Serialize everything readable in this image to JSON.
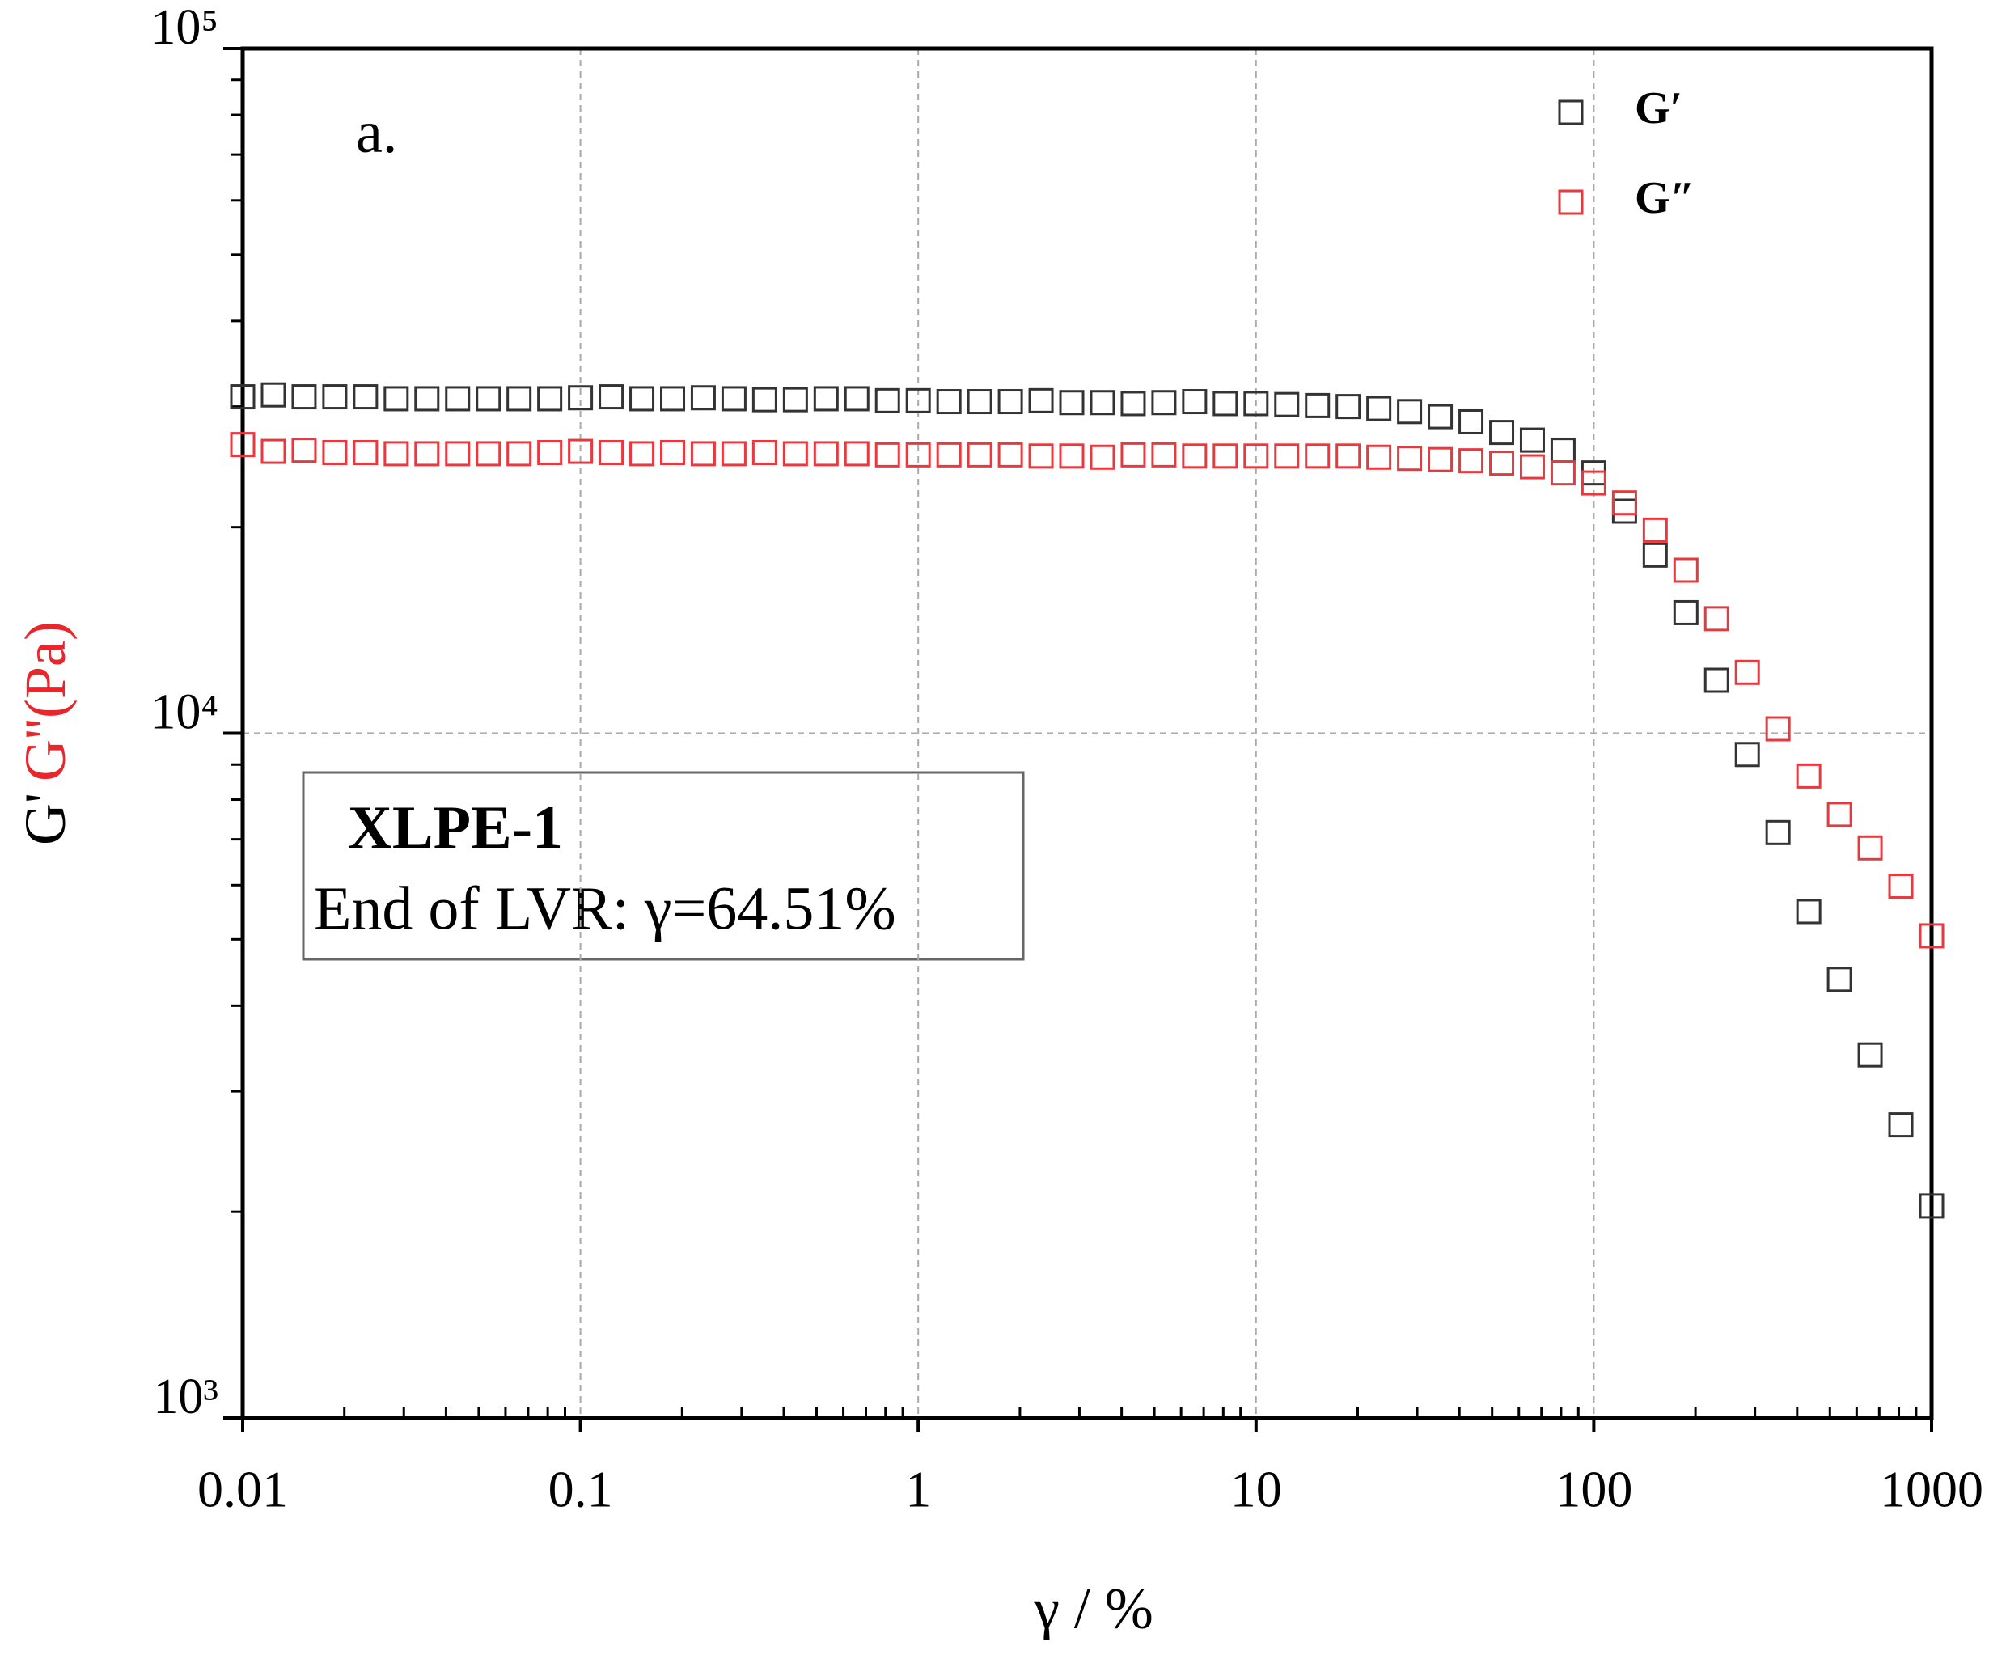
{
  "chart_data": {
    "type": "scatter",
    "annotations": [
      "a.",
      "XLPE-1",
      "End of LVR: γ=64.51%"
    ],
    "xlabel": "γ / %",
    "ylabel": [
      {
        "text": "G'",
        "color": "#000000"
      },
      {
        "text": "G''(Pa)",
        "color": "#e8262b"
      }
    ],
    "x": [
      0.01,
      0.01233,
      0.0152,
      0.01874,
      0.0231,
      0.02848,
      0.03511,
      0.04329,
      0.05337,
      0.06579,
      0.08111,
      0.1,
      0.1233,
      0.152,
      0.1874,
      0.231,
      0.2848,
      0.3511,
      0.4329,
      0.5337,
      0.6579,
      0.8111,
      1,
      1.233,
      1.52,
      1.874,
      2.31,
      2.848,
      3.511,
      4.329,
      5.337,
      6.579,
      8.111,
      10,
      12.33,
      15.2,
      18.74,
      23.1,
      28.48,
      35.11,
      43.29,
      53.37,
      65.79,
      81.11,
      100,
      123.3,
      152,
      187.4,
      231,
      284.8,
      351.1,
      432.9,
      533.7,
      657.9,
      811.1,
      1000
    ],
    "series": [
      {
        "name": "G′",
        "color": "#333333",
        "values": [
          31000,
          31200,
          31000,
          31000,
          31000,
          30800,
          30800,
          30800,
          30800,
          30800,
          30800,
          30900,
          31000,
          30800,
          30800,
          30900,
          30800,
          30700,
          30700,
          30800,
          30800,
          30600,
          30600,
          30500,
          30500,
          30500,
          30600,
          30400,
          30400,
          30300,
          30400,
          30500,
          30300,
          30300,
          30200,
          30100,
          30000,
          29800,
          29500,
          29000,
          28500,
          27500,
          26800,
          25900,
          24000,
          21100,
          18200,
          15000,
          11950,
          9310,
          7160,
          5490,
          4370,
          3390,
          2680,
          2040
        ]
      },
      {
        "name": "G″",
        "color": "#e8393f",
        "values": [
          26400,
          25800,
          25900,
          25700,
          25700,
          25600,
          25600,
          25600,
          25600,
          25600,
          25700,
          25800,
          25700,
          25600,
          25700,
          25600,
          25600,
          25700,
          25600,
          25600,
          25600,
          25500,
          25500,
          25500,
          25500,
          25500,
          25400,
          25400,
          25300,
          25500,
          25500,
          25400,
          25400,
          25400,
          25400,
          25400,
          25400,
          25300,
          25200,
          25100,
          25000,
          24800,
          24500,
          24000,
          23200,
          21700,
          19800,
          17300,
          14700,
          12270,
          10150,
          8660,
          7610,
          6800,
          5980,
          5060
        ]
      }
    ],
    "xlim": [
      0.01,
      1000
    ],
    "ylim": [
      1000,
      100000
    ],
    "xticks": [
      0.01,
      0.1,
      1,
      10,
      100,
      1000
    ],
    "yticks": [
      {
        "value": 1000,
        "label": "10³"
      },
      {
        "value": 10000,
        "label": "10⁴"
      },
      {
        "value": 100000,
        "label": "10⁵"
      }
    ],
    "xscale": "log",
    "yscale": "log",
    "grid": true,
    "minor_ticks": true,
    "legend": "upper right"
  }
}
